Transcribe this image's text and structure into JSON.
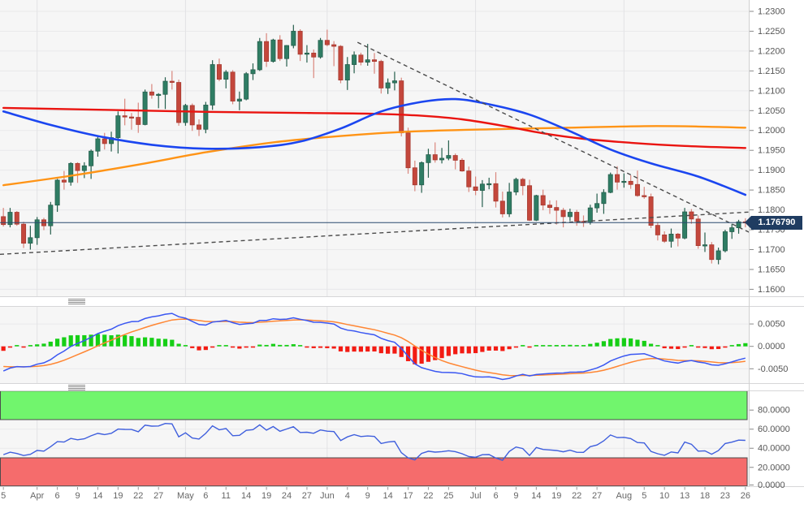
{
  "chart_data": {
    "type": "candlestick",
    "title": "",
    "last_price": 1.17679,
    "last_price_label": "1.176790",
    "price_axis": {
      "labels": [
        "1.2300",
        "1.2250",
        "1.2200",
        "1.2150",
        "1.2100",
        "1.2050",
        "1.2000",
        "1.1950",
        "1.1900",
        "1.1850",
        "1.1800",
        "1.1750",
        "1.1700",
        "1.1650",
        "1.1600"
      ],
      "max": 1.23,
      "min": 1.16,
      "step": 0.005
    },
    "x_ticks": [
      [
        "5",
        0
      ],
      [
        "Apr",
        5
      ],
      [
        "6",
        8
      ],
      [
        "9",
        11
      ],
      [
        "14",
        14
      ],
      [
        "19",
        17
      ],
      [
        "22",
        20
      ],
      [
        "27",
        23
      ],
      [
        "May",
        27
      ],
      [
        "6",
        30
      ],
      [
        "11",
        33
      ],
      [
        "14",
        36
      ],
      [
        "19",
        39
      ],
      [
        "24",
        42
      ],
      [
        "27",
        45
      ],
      [
        "Jun",
        48
      ],
      [
        "4",
        51
      ],
      [
        "9",
        54
      ],
      [
        "14",
        57
      ],
      [
        "17",
        60
      ],
      [
        "22",
        63
      ],
      [
        "25",
        66
      ],
      [
        "Jul",
        70
      ],
      [
        "6",
        73
      ],
      [
        "9",
        76
      ],
      [
        "14",
        79
      ],
      [
        "19",
        82
      ],
      [
        "22",
        85
      ],
      [
        "27",
        88
      ],
      [
        "Aug",
        92
      ],
      [
        "5",
        95
      ],
      [
        "10",
        98
      ],
      [
        "13",
        101
      ],
      [
        "18",
        104
      ],
      [
        "23",
        107
      ],
      [
        "26",
        110
      ]
    ],
    "month_grid_indices": [
      5,
      27,
      48,
      70,
      92
    ],
    "candles": [
      [
        1.1783,
        1.1805,
        1.1758,
        1.1763
      ],
      [
        1.1763,
        1.1805,
        1.1756,
        1.1794
      ],
      [
        1.1794,
        1.1797,
        1.176,
        1.1764
      ],
      [
        1.1764,
        1.177,
        1.1704,
        1.1716
      ],
      [
        1.1716,
        1.176,
        1.17,
        1.173
      ],
      [
        1.173,
        1.1782,
        1.1712,
        1.1775
      ],
      [
        1.1775,
        1.178,
        1.1749,
        1.176
      ],
      [
        1.176,
        1.182,
        1.1738,
        1.1812
      ],
      [
        1.1812,
        1.1878,
        1.1795,
        1.1875
      ],
      [
        1.1875,
        1.1898,
        1.1851,
        1.187
      ],
      [
        1.187,
        1.192,
        1.1861,
        1.1917
      ],
      [
        1.1917,
        1.192,
        1.1868,
        1.1899
      ],
      [
        1.1899,
        1.192,
        1.188,
        1.1911
      ],
      [
        1.1911,
        1.1952,
        1.1878,
        1.1948
      ],
      [
        1.1948,
        1.1988,
        1.1934,
        1.1979
      ],
      [
        1.1979,
        1.1994,
        1.1952,
        1.1967
      ],
      [
        1.1967,
        1.1997,
        1.1947,
        1.1982
      ],
      [
        1.1982,
        1.2048,
        1.1942,
        1.2037
      ],
      [
        1.2037,
        1.208,
        1.2013,
        1.2034
      ],
      [
        1.2034,
        1.2044,
        1.2002,
        1.2033
      ],
      [
        1.2033,
        1.207,
        1.1994,
        1.2015
      ],
      [
        1.2015,
        1.2103,
        1.2013,
        1.2097
      ],
      [
        1.2097,
        1.2117,
        1.208,
        1.2089
      ],
      [
        1.2089,
        1.2094,
        1.2056,
        1.2091
      ],
      [
        1.2091,
        1.2134,
        1.2054,
        1.2124
      ],
      [
        1.2124,
        1.215,
        1.2103,
        1.2121
      ],
      [
        1.2121,
        1.2128,
        1.2012,
        1.202
      ],
      [
        1.202,
        1.2067,
        1.2012,
        1.2063
      ],
      [
        1.2063,
        1.2068,
        1.1999,
        1.2014
      ],
      [
        1.2014,
        1.2028,
        1.1986,
        1.2003
      ],
      [
        1.2003,
        1.2072,
        1.1993,
        1.2064
      ],
      [
        1.2064,
        1.2177,
        1.2052,
        1.2166
      ],
      [
        1.2166,
        1.2181,
        1.2124,
        1.2129
      ],
      [
        1.2129,
        1.2152,
        1.2106,
        1.2147
      ],
      [
        1.2147,
        1.2152,
        1.2066,
        1.2074
      ],
      [
        1.2074,
        1.2098,
        1.2051,
        1.2079
      ],
      [
        1.2079,
        1.2147,
        1.2076,
        1.2143
      ],
      [
        1.2143,
        1.2169,
        1.2127,
        1.2153
      ],
      [
        1.2153,
        1.2233,
        1.215,
        1.2224
      ],
      [
        1.2224,
        1.2245,
        1.216,
        1.2174
      ],
      [
        1.2174,
        1.2231,
        1.2171,
        1.2228
      ],
      [
        1.2228,
        1.224,
        1.2175,
        1.2181
      ],
      [
        1.2181,
        1.2215,
        1.2161,
        1.2214
      ],
      [
        1.2214,
        1.2266,
        1.2207,
        1.225
      ],
      [
        1.225,
        1.2255,
        1.2175,
        1.2192
      ],
      [
        1.2192,
        1.2215,
        1.2171,
        1.2195
      ],
      [
        1.2195,
        1.2204,
        1.2132,
        1.2185
      ],
      [
        1.2185,
        1.2233,
        1.2181,
        1.2227
      ],
      [
        1.2227,
        1.2254,
        1.2212,
        1.2216
      ],
      [
        1.2216,
        1.2225,
        1.2162,
        1.2212
      ],
      [
        1.2212,
        1.2215,
        1.2119,
        1.2127
      ],
      [
        1.2127,
        1.2185,
        1.2102,
        1.2166
      ],
      [
        1.2166,
        1.2199,
        1.2144,
        1.219
      ],
      [
        1.219,
        1.2196,
        1.2164,
        1.2172
      ],
      [
        1.2172,
        1.2218,
        1.2163,
        1.2178
      ],
      [
        1.2178,
        1.2195,
        1.2143,
        1.2174
      ],
      [
        1.2174,
        1.2178,
        1.2093,
        1.2107
      ],
      [
        1.2107,
        1.2131,
        1.2092,
        1.212
      ],
      [
        1.212,
        1.2148,
        1.2101,
        1.2125
      ],
      [
        1.2125,
        1.2133,
        1.1985,
        1.1994
      ],
      [
        1.1994,
        1.2007,
        1.1891,
        1.1906
      ],
      [
        1.1906,
        1.1924,
        1.1847,
        1.1863
      ],
      [
        1.1863,
        1.1922,
        1.1843,
        1.1919
      ],
      [
        1.1919,
        1.1954,
        1.1881,
        1.1939
      ],
      [
        1.1939,
        1.197,
        1.1919,
        1.1926
      ],
      [
        1.1926,
        1.1956,
        1.1917,
        1.193
      ],
      [
        1.193,
        1.1975,
        1.1925,
        1.1937
      ],
      [
        1.1937,
        1.1942,
        1.1902,
        1.1925
      ],
      [
        1.1925,
        1.193,
        1.1896,
        1.1898
      ],
      [
        1.1898,
        1.1909,
        1.1845,
        1.1858
      ],
      [
        1.1858,
        1.1884,
        1.1837,
        1.1849
      ],
      [
        1.1849,
        1.1875,
        1.1807,
        1.1865
      ],
      [
        1.1865,
        1.1881,
        1.1852,
        1.1866
      ],
      [
        1.1866,
        1.1895,
        1.1806,
        1.1822
      ],
      [
        1.1822,
        1.1846,
        1.1781,
        1.179
      ],
      [
        1.179,
        1.1868,
        1.1782,
        1.1845
      ],
      [
        1.1845,
        1.1881,
        1.1837,
        1.1877
      ],
      [
        1.1877,
        1.1881,
        1.1837,
        1.1861
      ],
      [
        1.1861,
        1.1876,
        1.1772,
        1.1774
      ],
      [
        1.1774,
        1.1838,
        1.1772,
        1.1836
      ],
      [
        1.1836,
        1.1851,
        1.1799,
        1.1812
      ],
      [
        1.1812,
        1.1824,
        1.179,
        1.1806
      ],
      [
        1.1806,
        1.1824,
        1.1763,
        1.1799
      ],
      [
        1.1799,
        1.1805,
        1.1756,
        1.1783
      ],
      [
        1.1783,
        1.1803,
        1.1772,
        1.1794
      ],
      [
        1.1794,
        1.18,
        1.176,
        1.1771
      ],
      [
        1.1771,
        1.1786,
        1.1757,
        1.177
      ],
      [
        1.177,
        1.1813,
        1.1763,
        1.1805
      ],
      [
        1.1805,
        1.1841,
        1.1793,
        1.1816
      ],
      [
        1.1816,
        1.1852,
        1.179,
        1.1844
      ],
      [
        1.1844,
        1.1894,
        1.1842,
        1.1889
      ],
      [
        1.1889,
        1.191,
        1.1851,
        1.187
      ],
      [
        1.187,
        1.1892,
        1.1856,
        1.1872
      ],
      [
        1.1872,
        1.1887,
        1.1853,
        1.1864
      ],
      [
        1.1864,
        1.1899,
        1.1833,
        1.1836
      ],
      [
        1.1836,
        1.1858,
        1.1828,
        1.1833
      ],
      [
        1.1833,
        1.1841,
        1.1754,
        1.1761
      ],
      [
        1.1761,
        1.1769,
        1.1723,
        1.1737
      ],
      [
        1.1737,
        1.1746,
        1.1717,
        1.1721
      ],
      [
        1.1721,
        1.1753,
        1.1705,
        1.1739
      ],
      [
        1.1739,
        1.1742,
        1.1708,
        1.1729
      ],
      [
        1.1729,
        1.1805,
        1.1726,
        1.1795
      ],
      [
        1.1795,
        1.1802,
        1.1765,
        1.1777
      ],
      [
        1.1777,
        1.1786,
        1.1702,
        1.171
      ],
      [
        1.171,
        1.1743,
        1.1694,
        1.1712
      ],
      [
        1.1712,
        1.1719,
        1.1665,
        1.1675
      ],
      [
        1.1675,
        1.1705,
        1.1663,
        1.1697
      ],
      [
        1.1697,
        1.175,
        1.1693,
        1.1745
      ],
      [
        1.1745,
        1.1765,
        1.1727,
        1.1755
      ],
      [
        1.1755,
        1.1775,
        1.174,
        1.177
      ],
      [
        1.177,
        1.1779,
        1.1756,
        1.17679
      ]
    ],
    "candle_colors": {
      "up": "#2f7d64",
      "up_border": "#265f4d",
      "down": "#c4473c",
      "down_border": "#a63a30",
      "down_wick": "#d9867d"
    },
    "ma_lines": [
      {
        "name": "sma-slow-orange",
        "color": "#ff9416",
        "width": 2.4,
        "points": [
          [
            0,
            1.1862
          ],
          [
            10,
            1.1886
          ],
          [
            20,
            1.1914
          ],
          [
            30,
            1.1945
          ],
          [
            40,
            1.197
          ],
          [
            50,
            1.1986
          ],
          [
            60,
            1.1997
          ],
          [
            72,
            1.2003
          ],
          [
            84,
            1.2007
          ],
          [
            95,
            1.2011
          ],
          [
            103,
            1.201
          ],
          [
            110,
            1.2007
          ]
        ]
      },
      {
        "name": "sma-mid-red",
        "color": "#ea1410",
        "width": 2.4,
        "points": [
          [
            0,
            1.2057
          ],
          [
            15,
            1.2052
          ],
          [
            30,
            1.2047
          ],
          [
            45,
            1.2044
          ],
          [
            55,
            1.2042
          ],
          [
            62,
            1.2037
          ],
          [
            68,
            1.2028
          ],
          [
            74,
            1.2012
          ],
          [
            80,
            1.1993
          ],
          [
            86,
            1.1979
          ],
          [
            93,
            1.1969
          ],
          [
            101,
            1.1961
          ],
          [
            110,
            1.1956
          ]
        ]
      },
      {
        "name": "sma-fast-blue",
        "color": "#1b46f0",
        "width": 2.6,
        "points": [
          [
            0,
            1.2048
          ],
          [
            7,
            1.2014
          ],
          [
            14,
            1.1986
          ],
          [
            22,
            1.1964
          ],
          [
            30,
            1.1954
          ],
          [
            38,
            1.1958
          ],
          [
            44,
            1.1972
          ],
          [
            50,
            1.2005
          ],
          [
            56,
            1.2048
          ],
          [
            62,
            1.2072
          ],
          [
            67,
            1.2079
          ],
          [
            72,
            1.2066
          ],
          [
            78,
            1.204
          ],
          [
            84,
            1.1998
          ],
          [
            90,
            1.1952
          ],
          [
            96,
            1.1917
          ],
          [
            103,
            1.1884
          ],
          [
            110,
            1.1838
          ]
        ]
      }
    ],
    "trendlines": [
      {
        "name": "descending-resistance",
        "color": "#4a4a4a",
        "from": [
          52.5,
          1.2222
        ],
        "to": [
          111,
          1.174
        ]
      },
      {
        "name": "ascending-support",
        "color": "#4a4a4a",
        "from": [
          -0.5,
          1.1688
        ],
        "to": [
          111,
          1.1795
        ]
      }
    ],
    "macd": {
      "fast": 12,
      "slow": 26,
      "signal": 9,
      "seed_macd": -0.0055,
      "seed_signal": -0.0045,
      "axis_labels": [
        "0.0050",
        "0.0000",
        "-0.0050"
      ],
      "axis_values": [
        0.005,
        0.0,
        -0.005
      ],
      "colors": {
        "macd_line": "#3a57f2",
        "signal_line": "#ff8633",
        "pos": "#16cf16",
        "neg": "#f31b13"
      }
    },
    "rsi": {
      "period": 14,
      "seed_avg_gain": 0.002,
      "seed_avg_loss": 0.004,
      "axis_labels": [
        "80.0000",
        "60.0000",
        "40.0000",
        "20.0000",
        "0.0000"
      ],
      "axis_values": [
        80,
        60,
        40,
        20,
        0
      ],
      "overbought": 70,
      "oversold": 30,
      "line_color": "#3f5fdd",
      "overbought_fill": "#71f56d",
      "oversold_fill": "#f56c6c",
      "zone_border": "#4d4d4d"
    }
  }
}
